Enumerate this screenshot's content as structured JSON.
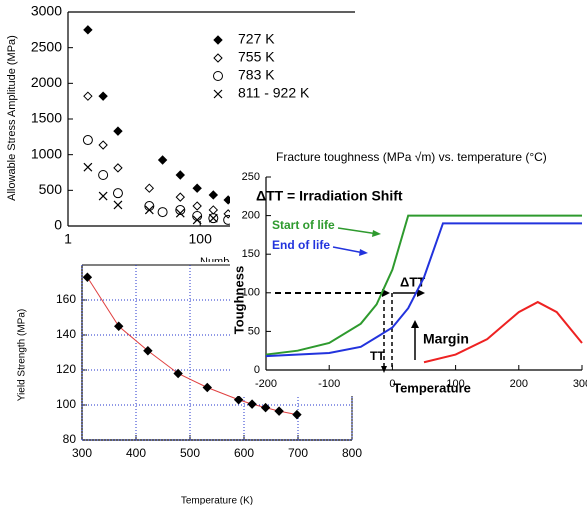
{
  "chart_data": [
    {
      "type": "scatter",
      "ylabel": "Allowable Stress Amplitude (MPa)",
      "xlabel": "Number of C",
      "xscale": "log",
      "xlim": [
        1,
        22000
      ],
      "xticks": [
        1,
        100
      ],
      "ylim": [
        0,
        3000
      ],
      "yticks": [
        0,
        500,
        1000,
        1500,
        2000,
        2500,
        3000
      ],
      "series": [
        {
          "name": "727 K",
          "marker": "filled-diamond",
          "color": "#000000",
          "x": [
            2.0,
            3.4,
            5.7,
            27,
            50,
            90,
            158,
            265
          ],
          "values": [
            2750,
            1820,
            1330,
            925,
            715,
            530,
            435,
            365
          ]
        },
        {
          "name": "755 K",
          "marker": "diamond",
          "color": "#000000",
          "x": [
            2.0,
            3.4,
            5.7,
            17,
            50,
            90,
            158,
            265
          ],
          "values": [
            1820,
            1135,
            815,
            530,
            405,
            280,
            225,
            170
          ]
        },
        {
          "name": "783 K",
          "marker": "circle",
          "color": "#000000",
          "x": [
            2.0,
            3.4,
            5.7,
            17,
            27,
            50,
            90,
            158,
            265
          ],
          "values": [
            1205,
            715,
            460,
            280,
            195,
            225,
            140,
            110,
            85
          ]
        },
        {
          "name": "811 - 922 K",
          "marker": "x",
          "color": "#000000",
          "x": [
            2.0,
            3.4,
            5.7,
            17,
            50,
            90,
            158
          ],
          "values": [
            825,
            420,
            295,
            225,
            180,
            85,
            110
          ]
        }
      ]
    },
    {
      "type": "scatter",
      "ylabel": "Yield Strength (MPa)",
      "xlabel": "Temperature (K)",
      "xlim": [
        300,
        800
      ],
      "xticks": [
        300,
        400,
        500,
        600,
        700,
        800
      ],
      "ylim": [
        80,
        180
      ],
      "yticks": [
        80,
        100,
        120,
        140,
        160
      ],
      "grid": true,
      "grid_color": "#2233cc",
      "series": [
        {
          "marker": "filled-diamond",
          "color": "#000000",
          "line_color": "#e04040",
          "x": [
            310,
            368,
            422,
            478,
            532,
            590,
            615,
            640,
            665,
            698
          ],
          "values": [
            173,
            145,
            131,
            118,
            110,
            103,
            100.5,
            98.5,
            96.5,
            94.5
          ]
        }
      ]
    },
    {
      "type": "line",
      "title": "Fracture toughness (MPa √m) vs. temperature (°C)",
      "ylabel": "Toughness",
      "xlabel": "Temperature",
      "xlim": [
        -200,
        300
      ],
      "xticks": [
        -200,
        -100,
        0,
        100,
        200,
        300
      ],
      "ylim": [
        0,
        250
      ],
      "yticks": [
        0,
        50,
        100,
        150,
        200,
        250
      ],
      "annotations": [
        "ΔTT = Irradiation Shift",
        "Start of life",
        "End of life",
        "ΔTT",
        "Margin",
        "TT"
      ],
      "series": [
        {
          "color": "#2e9a2e",
          "x": [
            -200,
            -150,
            -100,
            -50,
            -25,
            0,
            25,
            300
          ],
          "values": [
            20,
            25,
            35,
            60,
            85,
            130,
            200,
            200
          ]
        },
        {
          "color": "#2233dd",
          "x": [
            -200,
            -100,
            -50,
            0,
            25,
            50,
            80,
            300
          ],
          "values": [
            18,
            22,
            30,
            55,
            80,
            120,
            190,
            190
          ]
        },
        {
          "color": "#ee2222",
          "x": [
            50,
            100,
            150,
            200,
            230,
            260,
            300
          ],
          "values": [
            10,
            20,
            40,
            75,
            88,
            75,
            35
          ]
        }
      ]
    }
  ]
}
